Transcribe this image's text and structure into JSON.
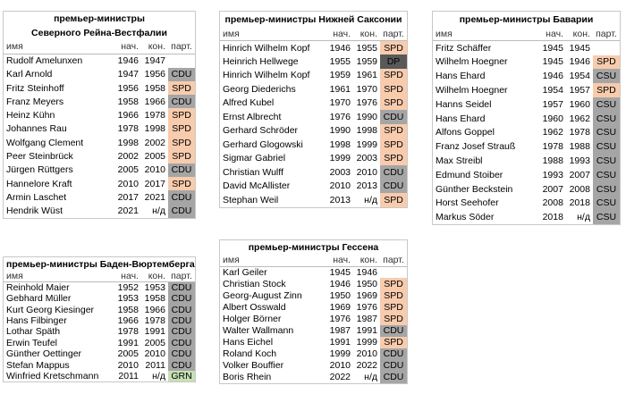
{
  "party_colors": {
    "CDU": "#a5a5a5",
    "CSU": "#a5a5a5",
    "SPD": "#f8cbad",
    "DP": "#595959",
    "GRN": "#c6e0b4"
  },
  "tables": [
    {
      "title": [
        "премьер-министры",
        "Северного Рейна-Вестфалии"
      ],
      "header": [
        "имя",
        "нач.",
        "кон.",
        "парт."
      ],
      "rows": [
        [
          "Rudolf Amelunxen",
          1946,
          1947
        ],
        [
          "Karl Arnold",
          1947,
          1956,
          "CDU"
        ],
        [
          "Fritz Steinhoff",
          1956,
          1958,
          "SPD"
        ],
        [
          "Franz Meyers",
          1958,
          1966,
          "CDU"
        ],
        [
          "Heinz Kühn",
          1966,
          1978,
          "SPD"
        ],
        [
          "Johannes Rau",
          1978,
          1998,
          "SPD"
        ],
        [
          "Wolfgang Clement",
          1998,
          2002,
          "SPD"
        ],
        [
          "Peer Steinbrück",
          2002,
          2005,
          "SPD"
        ],
        [
          "Jürgen Rüttgers",
          2005,
          2010,
          "CDU"
        ],
        [
          "Hannelore Kraft",
          2010,
          2017,
          "SPD"
        ],
        [
          "Armin Laschet",
          2017,
          2021,
          "CDU"
        ],
        [
          "Hendrik Wüst",
          2021,
          "н/д",
          "CDU"
        ]
      ]
    },
    {
      "title": [
        "премьер-министры Нижней Саксонии"
      ],
      "header": [
        "имя",
        "нач.",
        "кон.",
        "парт."
      ],
      "rows": [
        [
          "Hinrich Wilhelm Kopf",
          1946,
          1955,
          "SPD"
        ],
        [
          "Heinrich Hellwege",
          1955,
          1959,
          "DP"
        ],
        [
          "Hinrich Wilhelm Kopf",
          1959,
          1961,
          "SPD"
        ],
        [
          "Georg Diederichs",
          1961,
          1970,
          "SPD"
        ],
        [
          "Alfred Kubel",
          1970,
          1976,
          "SPD"
        ],
        [
          "Ernst Albrecht",
          1976,
          1990,
          "CDU"
        ],
        [
          "Gerhard Schröder",
          1990,
          1998,
          "SPD"
        ],
        [
          "Gerhard Glogowski",
          1998,
          1999,
          "SPD"
        ],
        [
          "Sigmar Gabriel",
          1999,
          2003,
          "SPD"
        ],
        [
          "Christian Wulff",
          2003,
          2010,
          "CDU"
        ],
        [
          "David McAllister",
          2010,
          2013,
          "CDU"
        ],
        [
          "Stephan Weil",
          2013,
          "н/д",
          "SPD"
        ]
      ]
    },
    {
      "title": [
        "премьер-министры Баварии"
      ],
      "header": [
        "имя",
        "нач.",
        "кон.",
        "парт."
      ],
      "rows": [
        [
          "Fritz Schäffer",
          1945,
          1945
        ],
        [
          "Wilhelm Hoegner",
          1945,
          1946,
          "SPD"
        ],
        [
          "Hans Ehard",
          1946,
          1954,
          "CSU"
        ],
        [
          "Wilhelm Hoegner",
          1954,
          1957,
          "SPD"
        ],
        [
          "Hanns Seidel",
          1957,
          1960,
          "CSU"
        ],
        [
          "Hans Ehard",
          1960,
          1962,
          "CSU"
        ],
        [
          "Alfons Goppel",
          1962,
          1978,
          "CSU"
        ],
        [
          "Franz Josef Strauß",
          1978,
          1988,
          "CSU"
        ],
        [
          "Max Streibl",
          1988,
          1993,
          "CSU"
        ],
        [
          "Edmund Stoiber",
          1993,
          2007,
          "CSU"
        ],
        [
          "Günther Beckstein",
          2007,
          2008,
          "CSU"
        ],
        [
          "Horst Seehofer",
          2008,
          2018,
          "CSU"
        ],
        [
          "Markus Söder",
          2018,
          "н/д",
          "CSU"
        ]
      ]
    },
    {
      "title": [
        "премьер-министры Баден-Вюртемберга"
      ],
      "header": [
        "имя",
        "нач.",
        "кон.",
        "парт."
      ],
      "rows": [
        [
          "Reinhold Maier",
          1952,
          1953,
          "CDU"
        ],
        [
          "Gebhard Müller",
          1953,
          1958,
          "CDU"
        ],
        [
          "Kurt Georg Kiesinger",
          1958,
          1966,
          "CDU"
        ],
        [
          "Hans Filbinger",
          1966,
          1978,
          "CDU"
        ],
        [
          "Lothar Späth",
          1978,
          1991,
          "CDU"
        ],
        [
          "Erwin Teufel",
          1991,
          2005,
          "CDU"
        ],
        [
          "Günther Oettinger",
          2005,
          2010,
          "CDU"
        ],
        [
          "Stefan Mappus",
          2010,
          2011,
          "CDU"
        ],
        [
          "Winfried Kretschmann",
          2011,
          "н/д",
          "GRN"
        ]
      ]
    },
    {
      "title": [
        "премьер-министры Гессена"
      ],
      "header": [
        "имя",
        "нач.",
        "кон.",
        "парт."
      ],
      "rows": [
        [
          "Karl Geiler",
          1945,
          1946
        ],
        [
          "Christian Stock",
          1946,
          1950,
          "SPD"
        ],
        [
          "Georg-August Zinn",
          1950,
          1969,
          "SPD"
        ],
        [
          "Albert Osswald",
          1969,
          1976,
          "SPD"
        ],
        [
          "Holger Börner",
          1976,
          1987,
          "SPD"
        ],
        [
          "Walter Wallmann",
          1987,
          1991,
          "CDU"
        ],
        [
          "Hans Eichel",
          1991,
          1999,
          "SPD"
        ],
        [
          "Roland Koch",
          1999,
          2010,
          "CDU"
        ],
        [
          "Volker Bouffier",
          2010,
          2022,
          "CDU"
        ],
        [
          "Boris Rhein",
          2022,
          "н/д",
          "CDU"
        ]
      ]
    }
  ]
}
